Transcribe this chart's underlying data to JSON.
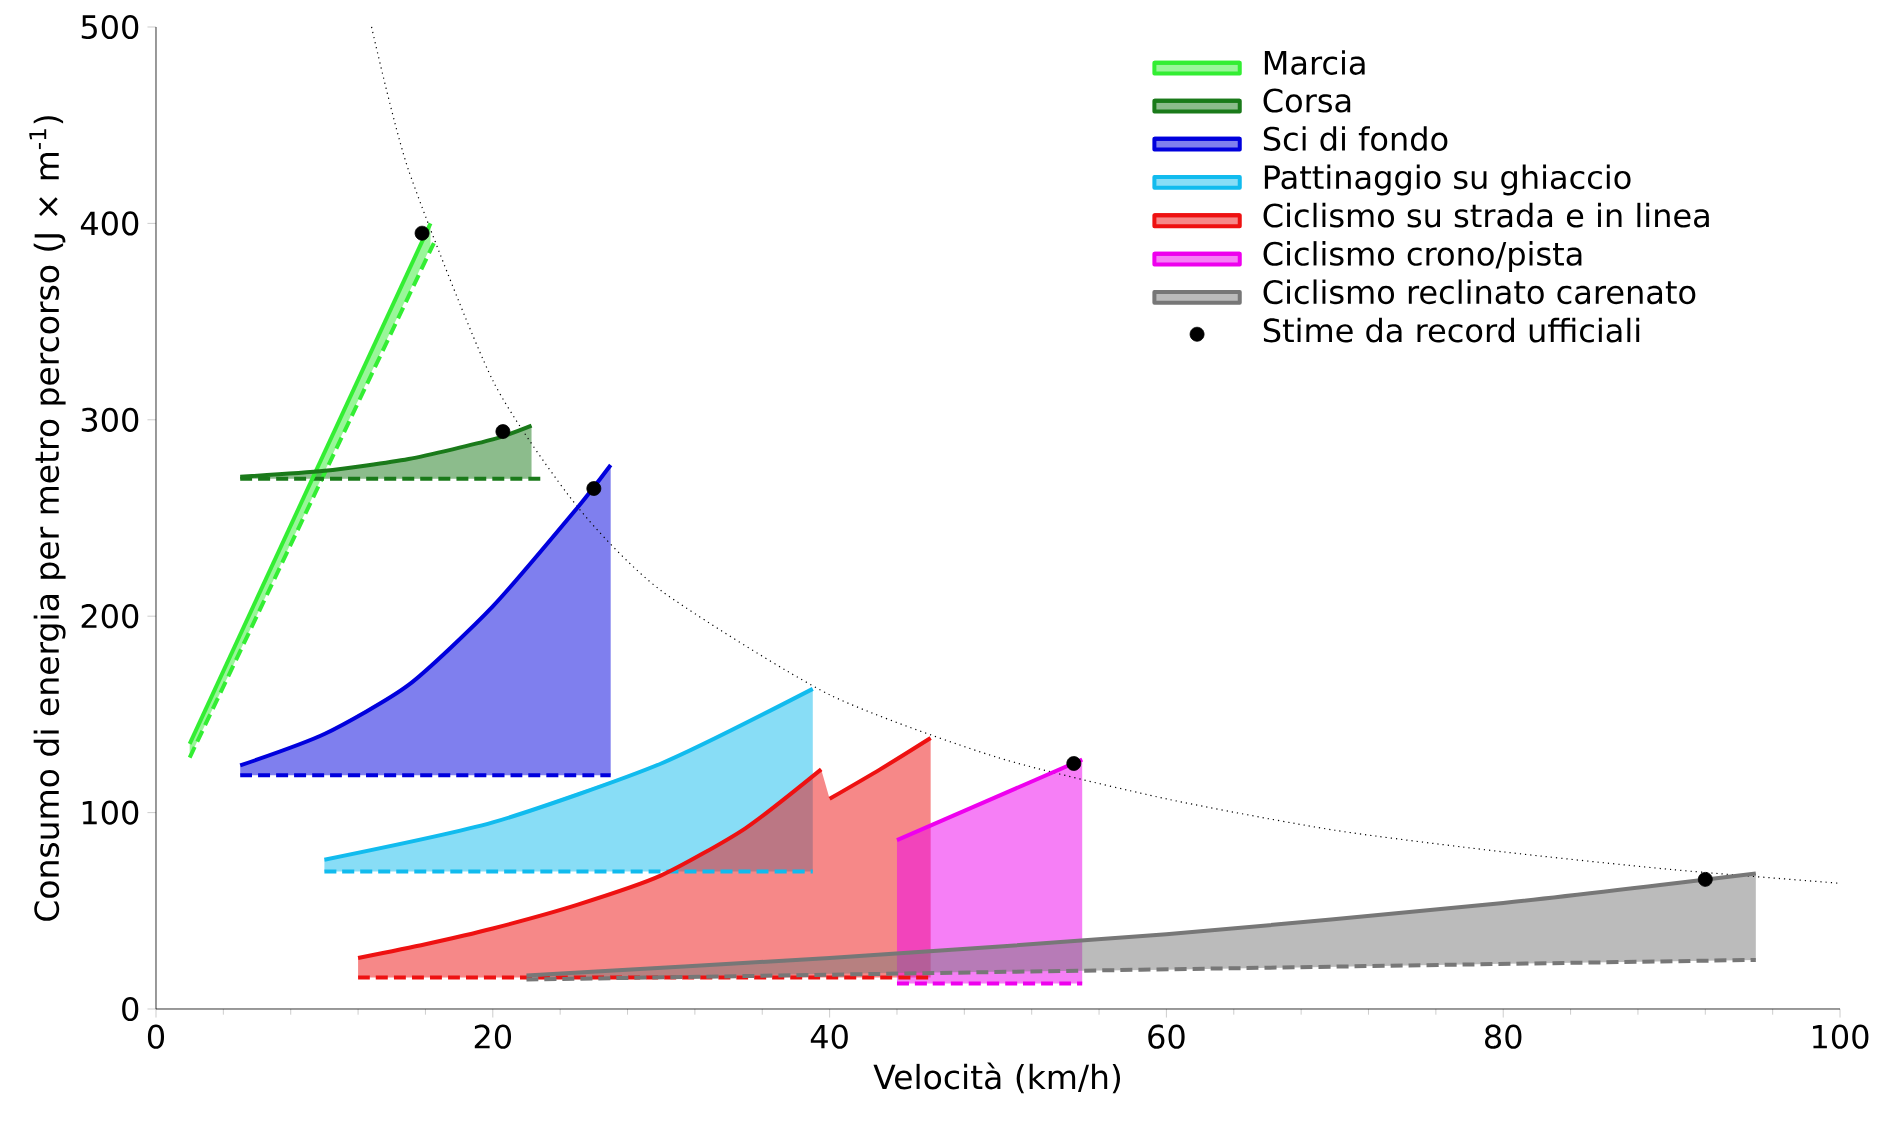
{
  "chart_data": {
    "type": "line",
    "xlabel": "Velocità (km/h)",
    "ylabel": "Consumo di energia per metro percorso (J × m$^{-1}$)",
    "xlim": [
      0,
      100
    ],
    "ylim": [
      0,
      500
    ],
    "xticks": [
      0,
      20,
      40,
      60,
      80,
      100
    ],
    "yticks": [
      0,
      100,
      200,
      300,
      400,
      500
    ],
    "legend": "top right",
    "series": [
      {
        "name": "Marcia",
        "color": "#33ee33",
        "x": [
          2,
          16.3
        ],
        "values": [
          135,
          400
        ],
        "lower": [
          128,
          388
        ],
        "upper": [
          135,
          400
        ]
      },
      {
        "name": "Corsa",
        "color": "#1a7a1a",
        "x": [
          5,
          10,
          15,
          20,
          22.3
        ],
        "values": [
          271,
          274,
          280,
          290,
          297
        ],
        "lower": [
          270,
          270,
          270,
          270,
          270
        ],
        "upper": [
          271,
          274,
          280,
          290,
          297
        ]
      },
      {
        "name": "Sci di fondo",
        "color": "#0000dd",
        "x": [
          5,
          10,
          15,
          20,
          25,
          27
        ],
        "values": [
          124,
          140,
          165,
          205,
          255,
          277
        ],
        "lower": [
          119,
          119,
          119,
          119,
          119,
          119
        ],
        "upper": [
          124,
          140,
          165,
          205,
          255,
          277
        ]
      },
      {
        "name": "Pattinaggio su ghiaccio",
        "color": "#11bbee",
        "x": [
          10,
          20,
          30,
          39
        ],
        "values": [
          76,
          95,
          125,
          163
        ],
        "lower": [
          70,
          70,
          70,
          70
        ],
        "upper": [
          76,
          95,
          125,
          163
        ]
      },
      {
        "name": "Ciclismo su strada e in linea",
        "color": "#ee1111",
        "x": [
          12,
          16,
          20,
          25,
          30,
          35,
          39.5,
          39.7,
          40,
          43,
          46
        ],
        "values": [
          26,
          33,
          41,
          53,
          68,
          92,
          122,
          null,
          107,
          122,
          138
        ],
        "lower": [
          16,
          16,
          16,
          16,
          16,
          16,
          16,
          null,
          16,
          16,
          16
        ],
        "upper": [
          26,
          33,
          41,
          53,
          68,
          92,
          122,
          null,
          107,
          122,
          138
        ]
      },
      {
        "name": "Ciclismo crono/pista",
        "color": "#ee00ee",
        "x": [
          44,
          55
        ],
        "values": [
          86,
          127
        ],
        "lower": [
          13,
          13
        ],
        "upper": [
          86,
          127
        ]
      },
      {
        "name": "Ciclismo reclinato carenato",
        "color": "#777777",
        "x": [
          22,
          40,
          60,
          80,
          95
        ],
        "values": [
          17,
          26,
          38,
          54,
          69
        ],
        "lower": [
          15,
          18,
          20,
          23,
          25
        ],
        "upper": [
          17,
          26,
          38,
          54,
          69
        ]
      },
      {
        "type": "line",
        "line_style": "dashed",
        "color": "#33ee33",
        "x": [
          2,
          16.5
        ],
        "values": [
          128,
          390
        ]
      },
      {
        "type": "line",
        "line_style": "dashed",
        "color": "#1a7a1a",
        "x": [
          5,
          23
        ],
        "values": [
          270,
          270
        ]
      },
      {
        "type": "line",
        "line_style": "dashed",
        "color": "#0000dd",
        "x": [
          5,
          27
        ],
        "values": [
          119,
          119
        ]
      },
      {
        "type": "line",
        "line_style": "dashed",
        "color": "#11bbee",
        "x": [
          10,
          39
        ],
        "values": [
          70,
          70
        ]
      },
      {
        "type": "line",
        "line_style": "dashed",
        "color": "#ee1111",
        "x": [
          12,
          46
        ],
        "values": [
          16,
          16
        ]
      },
      {
        "type": "line",
        "line_style": "dashed",
        "color": "#ee00ee",
        "x": [
          44,
          55
        ],
        "values": [
          13,
          13
        ]
      },
      {
        "type": "line",
        "line_style": "dashed",
        "color": "#777777",
        "x": [
          22,
          95
        ],
        "values": [
          15,
          25
        ]
      },
      {
        "type": "line",
        "line_style": "dotted",
        "color": "#000000",
        "x": [
          12.8,
          15,
          20,
          25,
          30,
          40,
          50,
          60,
          70,
          80,
          90,
          100
        ],
        "values": [
          500,
          427,
          320,
          256,
          213,
          160,
          128,
          107,
          91,
          80,
          71,
          64
        ]
      },
      {
        "type": "scatter",
        "name": "Stime da record ufficiali",
        "marker": "circle",
        "color": "#000000",
        "x": [
          15.8,
          20.6,
          26,
          54.5,
          92
        ],
        "values": [
          395,
          294,
          265,
          125,
          66
        ]
      }
    ]
  }
}
